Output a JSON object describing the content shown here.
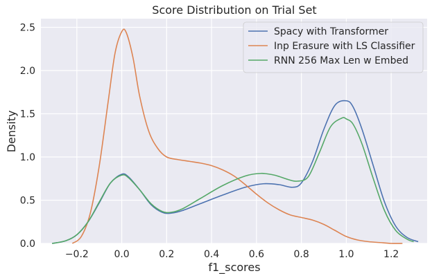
{
  "chart_data": {
    "type": "line",
    "title": "Score Distribution on Trial Set",
    "xlabel": "f1_scores",
    "ylabel": "Density",
    "xlim": [
      -0.36,
      1.36
    ],
    "ylim": [
      0,
      2.6
    ],
    "xticks": [
      -0.2,
      0.0,
      0.2,
      0.4,
      0.6,
      0.8,
      1.0,
      1.2
    ],
    "xtick_labels": [
      "−0.2",
      "0.0",
      "0.2",
      "0.4",
      "0.6",
      "0.8",
      "1.0",
      "1.2"
    ],
    "yticks": [
      0.0,
      0.5,
      1.0,
      1.5,
      2.0,
      2.5
    ],
    "ytick_labels": [
      "0.0",
      "0.5",
      "1.0",
      "1.5",
      "2.0",
      "2.5"
    ],
    "grid": true,
    "background": "#eaeaf2",
    "legend_position": "top-right",
    "series": [
      {
        "name": "Spacy with Transformer",
        "color": "#4c72b0",
        "x": [
          -0.31,
          -0.25,
          -0.2,
          -0.15,
          -0.1,
          -0.05,
          0.0,
          0.03,
          0.08,
          0.13,
          0.18,
          0.22,
          0.27,
          0.35,
          0.45,
          0.55,
          0.63,
          0.7,
          0.76,
          0.8,
          0.85,
          0.9,
          0.95,
          1.0,
          1.03,
          1.07,
          1.12,
          1.17,
          1.22,
          1.27,
          1.32
        ],
        "y": [
          0.0,
          0.03,
          0.1,
          0.25,
          0.47,
          0.7,
          0.8,
          0.77,
          0.62,
          0.45,
          0.36,
          0.35,
          0.38,
          0.46,
          0.56,
          0.65,
          0.69,
          0.68,
          0.65,
          0.7,
          0.95,
          1.32,
          1.6,
          1.65,
          1.58,
          1.32,
          0.9,
          0.48,
          0.2,
          0.07,
          0.02
        ]
      },
      {
        "name": "Inp Erasure with LS Classifier",
        "color": "#dd8452",
        "x": [
          -0.22,
          -0.18,
          -0.14,
          -0.1,
          -0.06,
          -0.03,
          0.0,
          0.02,
          0.05,
          0.08,
          0.12,
          0.16,
          0.2,
          0.25,
          0.3,
          0.35,
          0.4,
          0.45,
          0.5,
          0.55,
          0.6,
          0.65,
          0.7,
          0.75,
          0.8,
          0.85,
          0.9,
          0.95,
          1.0,
          1.05,
          1.1,
          1.15,
          1.2,
          1.25
        ],
        "y": [
          0.0,
          0.08,
          0.35,
          0.9,
          1.65,
          2.2,
          2.45,
          2.44,
          2.15,
          1.7,
          1.3,
          1.1,
          1.0,
          0.97,
          0.95,
          0.93,
          0.9,
          0.85,
          0.78,
          0.68,
          0.57,
          0.47,
          0.39,
          0.33,
          0.3,
          0.27,
          0.22,
          0.15,
          0.08,
          0.04,
          0.02,
          0.01,
          0.0,
          0.0
        ]
      },
      {
        "name": "RNN 256 Max Len w Embed",
        "color": "#55a868",
        "x": [
          -0.31,
          -0.25,
          -0.2,
          -0.15,
          -0.1,
          -0.05,
          0.0,
          0.03,
          0.08,
          0.13,
          0.18,
          0.22,
          0.27,
          0.35,
          0.45,
          0.55,
          0.62,
          0.68,
          0.74,
          0.78,
          0.83,
          0.88,
          0.93,
          0.98,
          1.0,
          1.03,
          1.07,
          1.12,
          1.17,
          1.22,
          1.27,
          1.3
        ],
        "y": [
          0.0,
          0.03,
          0.1,
          0.25,
          0.48,
          0.7,
          0.79,
          0.76,
          0.62,
          0.46,
          0.37,
          0.36,
          0.4,
          0.52,
          0.67,
          0.78,
          0.81,
          0.79,
          0.74,
          0.72,
          0.77,
          1.05,
          1.35,
          1.45,
          1.44,
          1.38,
          1.15,
          0.75,
          0.38,
          0.15,
          0.05,
          0.02
        ]
      }
    ]
  }
}
